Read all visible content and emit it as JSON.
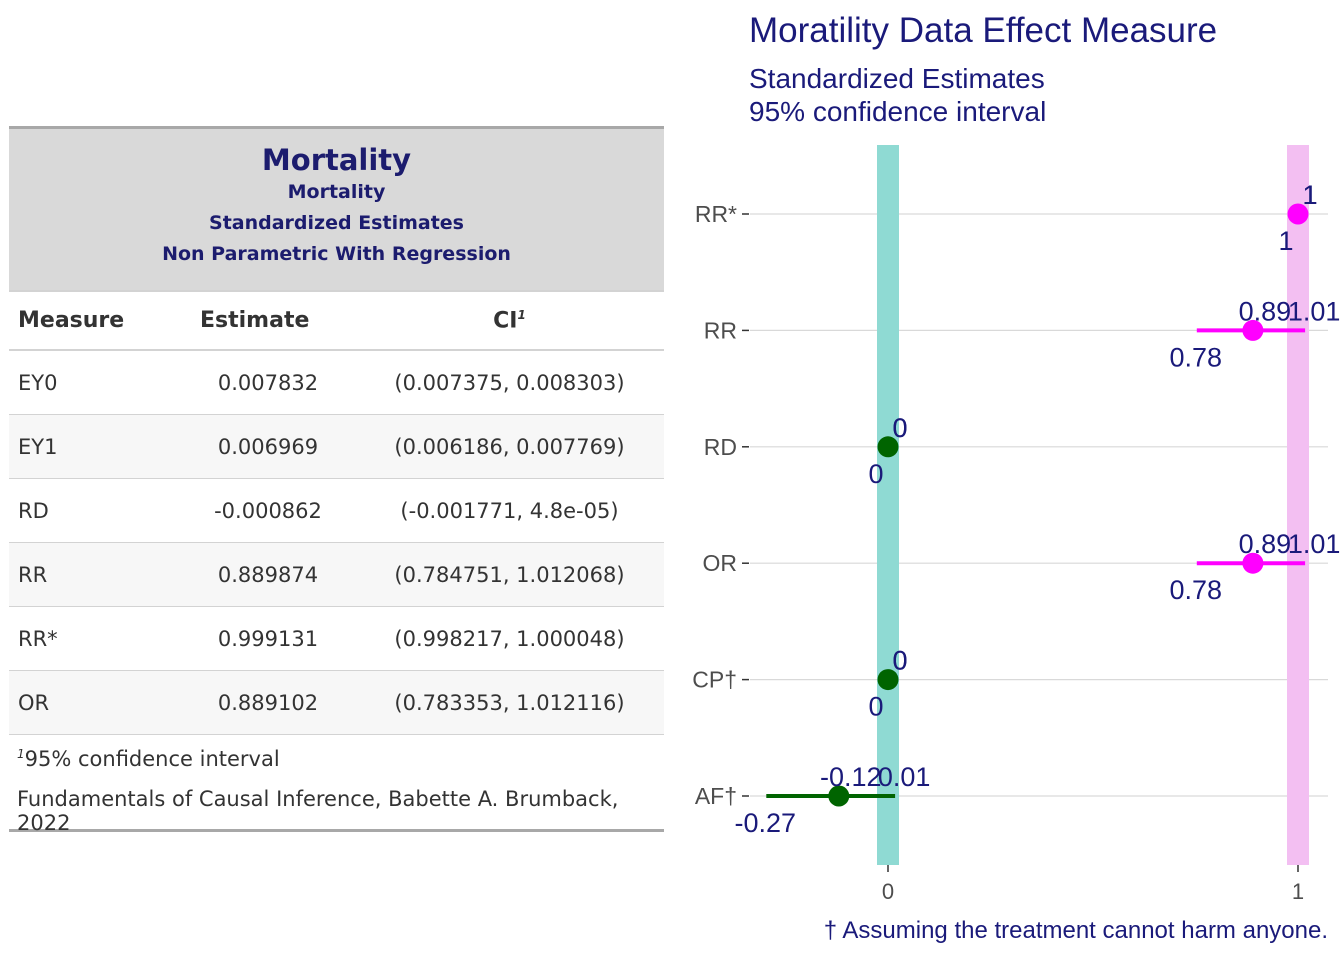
{
  "table": {
    "title": "Mortality",
    "subtitles": [
      "Mortality",
      "Standardized Estimates",
      "Non Parametric With Regression"
    ],
    "columns": [
      "Measure",
      "Estimate",
      "CI"
    ],
    "ci_footnote_mark": "1",
    "rows": [
      {
        "measure": "EY0",
        "estimate": "0.007832",
        "ci": "(0.007375, 0.008303)"
      },
      {
        "measure": "EY1",
        "estimate": "0.006969",
        "ci": "(0.006186, 0.007769)"
      },
      {
        "measure": "RD",
        "estimate": "-0.000862",
        "ci": "(-0.001771, 4.8e-05)"
      },
      {
        "measure": "RR",
        "estimate": "0.889874",
        "ci": "(0.784751, 1.012068)"
      },
      {
        "measure": "RR*",
        "estimate": "0.999131",
        "ci": "(0.998217, 1.000048)"
      },
      {
        "measure": "OR",
        "estimate": "0.889102",
        "ci": "(0.783353, 1.012116)"
      }
    ],
    "footnote": "95% confidence interval",
    "source": "Fundamentals of Causal Inference, Babette A. Brumback, 2022"
  },
  "chart": {
    "title": "Moratility Data Effect Measure",
    "subtitle_line1": "Standardized Estimates",
    "subtitle_line2": "95% confidence interval",
    "caption": "† Assuming the treatment cannot harm anyone."
  },
  "chart_data": {
    "type": "scatter",
    "title": "Moratility Data Effect Measure",
    "categories": [
      "RR*",
      "RR",
      "RD",
      "OR",
      "CP†",
      "AF†"
    ],
    "x_ticks": [
      0,
      1
    ],
    "xlim": [
      -0.27,
      1.07
    ],
    "reference_bands": [
      {
        "x": 0,
        "color": "#8fdad3"
      },
      {
        "x": 1,
        "color": "#f3bff2"
      }
    ],
    "points": [
      {
        "measure": "RR*",
        "est": 1,
        "lo": 1,
        "hi": 1,
        "est_label": "1",
        "lo_label": "1",
        "hi_label": "1",
        "color": "#ff00ff"
      },
      {
        "measure": "RR",
        "est": 0.89,
        "lo": 0.78,
        "hi": 1.01,
        "est_label": "0.89",
        "lo_label": "0.78",
        "hi_label": "1.01",
        "color": "#ff00ff"
      },
      {
        "measure": "RD",
        "est": 0,
        "lo": 0,
        "hi": 0,
        "est_label": "0",
        "lo_label": "0",
        "hi_label": "0",
        "color": "#006400"
      },
      {
        "measure": "OR",
        "est": 0.89,
        "lo": 0.78,
        "hi": 1.01,
        "est_label": "0.89",
        "lo_label": "0.78",
        "hi_label": "1.01",
        "color": "#ff00ff"
      },
      {
        "measure": "CP†",
        "est": 0,
        "lo": 0,
        "hi": 0,
        "est_label": "0",
        "lo_label": "0",
        "hi_label": "0",
        "color": "#006400"
      },
      {
        "measure": "AF†",
        "est": -0.12,
        "lo": -0.27,
        "hi": 0.01,
        "est_label": "-0.12",
        "lo_label": "-0.27",
        "hi_label": "0.01",
        "color": "#006400"
      }
    ],
    "grid": true,
    "label_color": "#1a1a7a"
  }
}
